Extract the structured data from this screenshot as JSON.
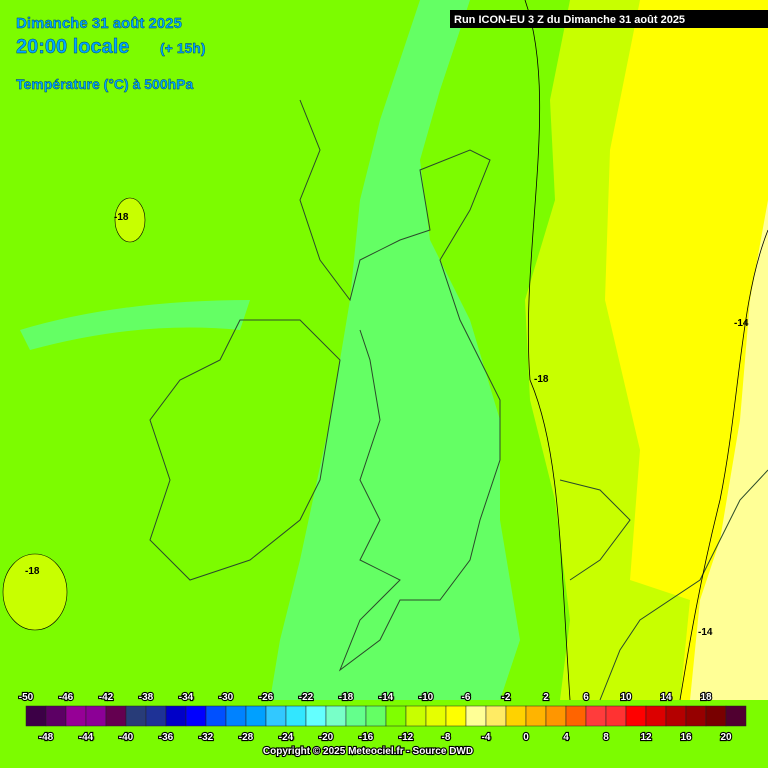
{
  "header": {
    "date": "Dimanche 31 août 2025",
    "time": "20:00 locale",
    "lead": "(+ 15h)",
    "variable": "Température (°C) à 500hPa"
  },
  "run_label": "Run ICON-EU 3 Z du Dimanche 31 août 2025",
  "contour_labels": [
    "-18",
    "-18",
    "-18",
    "-14",
    "-14"
  ],
  "legend": {
    "top_labels": [
      "-50",
      "-46",
      "-42",
      "-38",
      "-34",
      "-30",
      "-26",
      "-22",
      "-18",
      "-14",
      "-10",
      "-6",
      "-2",
      "2",
      "6",
      "10",
      "14",
      "18"
    ],
    "bottom_labels": [
      "-48",
      "-44",
      "-40",
      "-36",
      "-32",
      "-28",
      "-24",
      "-20",
      "-16",
      "-12",
      "-8",
      "-4",
      "0",
      "4",
      "8",
      "12",
      "16",
      "20"
    ],
    "colors": [
      "#3c0046",
      "#5c0064",
      "#960096",
      "#8c0096",
      "#640050",
      "#283c78",
      "#1e3296",
      "#0000c8",
      "#0000ff",
      "#0050ff",
      "#0082ff",
      "#00a0ff",
      "#32c8ff",
      "#32e6ff",
      "#64ffff",
      "#78ffc8",
      "#64ff8c",
      "#64ff64",
      "#80ff00",
      "#c8ff00",
      "#e6ff00",
      "#ffff00",
      "#ffff96",
      "#ffeb64",
      "#ffd200",
      "#ffb400",
      "#ff9600",
      "#ff6400",
      "#ff3c3c",
      "#ff3232",
      "#ff0000",
      "#dc0000",
      "#b40000",
      "#960000",
      "#780000",
      "#500030"
    ]
  },
  "copyright": "Copyright © 2025 Meteociel.fr - Source DWD"
}
